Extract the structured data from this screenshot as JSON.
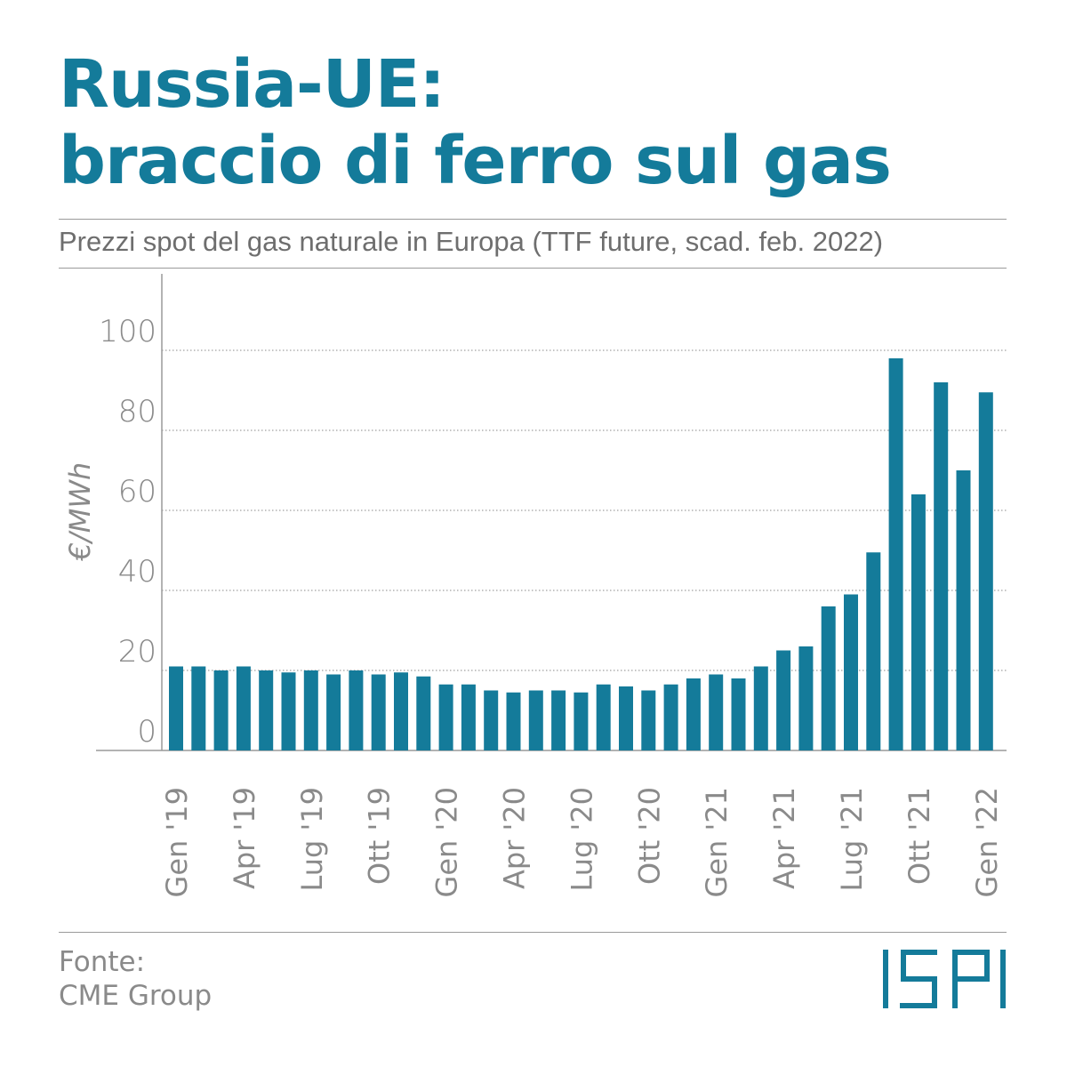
{
  "title_line1": "Russia-UE:",
  "title_line2": "braccio di ferro sul gas",
  "subtitle": "Prezzi spot del gas naturale in Europa (TTF future, scad. feb. 2022)",
  "source_label": "Fonte:",
  "source_name": "CME Group",
  "logo_text": "ISPI",
  "colors": {
    "bar": "#147b9a",
    "title": "#147b9a",
    "axis_text": "#8a8a8a"
  },
  "chart_data": {
    "type": "bar",
    "ylabel": "€/MWh",
    "ylim": [
      0,
      118
    ],
    "yticks": [
      0,
      20,
      40,
      60,
      80,
      100
    ],
    "grid": true,
    "xtick_labels": [
      "Gen '19",
      "Apr '19",
      "Lug '19",
      "Ott '19",
      "Gen '20",
      "Apr '20",
      "Lug '20",
      "Ott '20",
      "Gen '21",
      "Apr '21",
      "Lug '21",
      "Ott '21",
      "Gen '22"
    ],
    "xtick_every": 3,
    "values": [
      21,
      21,
      20,
      21,
      20,
      19.5,
      20,
      19,
      20,
      19,
      19.5,
      18.5,
      16.5,
      16.5,
      15,
      14.5,
      15,
      15,
      14.5,
      16.5,
      16,
      15,
      16.5,
      18,
      19,
      18,
      21,
      25,
      26,
      36,
      39,
      49.5,
      98,
      64,
      92,
      70,
      89.5
    ]
  }
}
